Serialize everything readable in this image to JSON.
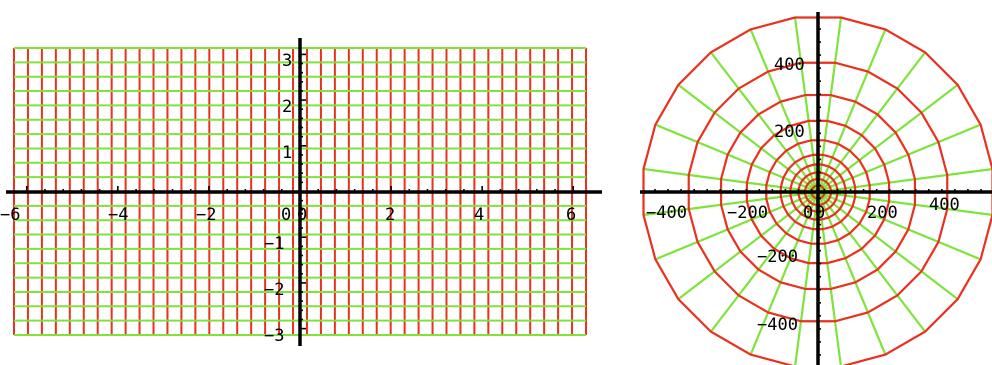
{
  "colors": {
    "red": "#e8321e",
    "green": "#7ee33c",
    "axis": "#000000",
    "background": "#ffffff"
  },
  "left_plot": {
    "x_range": [
      -6.28,
      6.28
    ],
    "y_range": [
      -3.14,
      3.14
    ],
    "grid_step": 0.31,
    "x_tick_labels": [
      "−6",
      "−4",
      "−2",
      "0",
      "0",
      "2",
      "4",
      "6"
    ],
    "y_tick_labels": [
      "3",
      "2",
      "1",
      "−1",
      "−2",
      "−3"
    ]
  },
  "right_plot": {
    "radii": [
      20,
      40,
      60,
      85,
      115,
      160,
      220,
      300,
      400,
      540
    ],
    "spokes": 24,
    "x_tick_labels": [
      "−400",
      "−200",
      "0",
      "0",
      "200",
      "400"
    ],
    "y_tick_labels": [
      "400",
      "200",
      "−200",
      "−400"
    ]
  }
}
